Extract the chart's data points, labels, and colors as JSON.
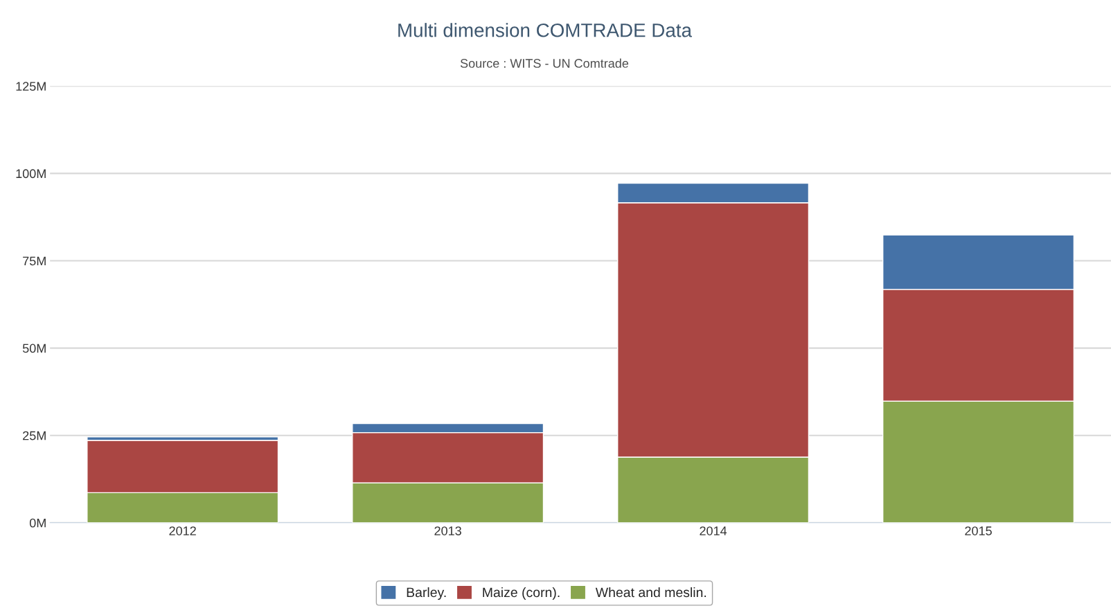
{
  "chart_data": {
    "type": "bar",
    "title": "Multi dimension COMTRADE Data",
    "subtitle": "Source : WITS - UN Comtrade",
    "categories": [
      "2012",
      "2013",
      "2014",
      "2015"
    ],
    "stacked": true,
    "series": [
      {
        "name": "Wheat and meslin.",
        "color": "#89a54e",
        "values": [
          8.6,
          11.4,
          18.8,
          34.8
        ]
      },
      {
        "name": "Maize (corn).",
        "color": "#aa4643",
        "values": [
          15,
          14.4,
          72.8,
          32
        ]
      },
      {
        "name": "Barley.",
        "color": "#4572a7",
        "values": [
          1,
          2.6,
          5.6,
          15.6
        ]
      }
    ],
    "ylim": [
      0,
      125
    ],
    "yticks": [
      {
        "value": 0,
        "label": "0M"
      },
      {
        "value": 25,
        "label": "25M"
      },
      {
        "value": 50,
        "label": "50M"
      },
      {
        "value": 75,
        "label": "75M"
      },
      {
        "value": 100,
        "label": "100M"
      },
      {
        "value": 125,
        "label": "125M"
      }
    ],
    "grid": "y",
    "legend": "bottom"
  }
}
